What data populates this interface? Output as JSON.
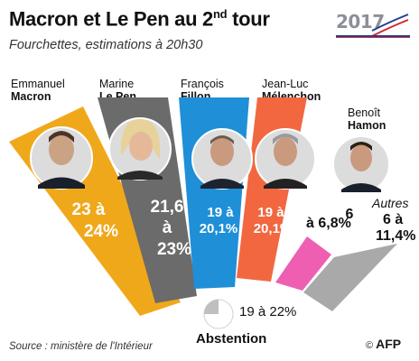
{
  "header": {
    "title_main": "Macron et Le Pen au 2",
    "title_sup": "nd",
    "title_end": " tour",
    "subtitle": "Fourchettes, estimations à 20h30"
  },
  "logo": {
    "year": "2017"
  },
  "source": "Source : ministère de l'Intérieur",
  "credit": {
    "copyright": "©",
    "agency": "AFP"
  },
  "chart_data": {
    "type": "bar",
    "title": "Macron et Le Pen au 2nd tour",
    "subtitle": "Fourchettes, estimations à 20h30",
    "unit": "%",
    "categories": [
      "Emmanuel Macron",
      "Marine Le Pen",
      "François Fillon",
      "Jean-Luc Mélenchon",
      "Benoît Hamon",
      "Autres"
    ],
    "series": [
      {
        "name": "low",
        "values": [
          23,
          21.6,
          19,
          19,
          6,
          6
        ]
      },
      {
        "name": "high",
        "values": [
          24,
          23,
          20.1,
          20.1,
          6.8,
          11.4
        ]
      }
    ],
    "labels": [
      "23 à 24%",
      "21,6 à 23%",
      "19 à 20,1%",
      "19 à 20,1%",
      "6 à 6,8%",
      "6 à 11,4%"
    ],
    "colors": [
      "#f0a81b",
      "#6b6b6b",
      "#1f8fd8",
      "#f26740",
      "#ee5fb2",
      "#a9a9a9"
    ],
    "abstention": {
      "label": "Abstention",
      "low": 19,
      "high": 22,
      "text": "19 à 22%"
    }
  },
  "candidates": [
    {
      "first": "Emmanuel",
      "last": "Macron"
    },
    {
      "first": "Marine",
      "last": "Le Pen"
    },
    {
      "first": "François",
      "last": "Fillon"
    },
    {
      "first": "Jean-Luc",
      "last": "Mélenchon"
    },
    {
      "first": "Benoît",
      "last": "Hamon"
    }
  ],
  "bar_text": {
    "macron": [
      "23 à",
      "24%"
    ],
    "lepen": [
      "21,6",
      "à",
      "23%"
    ],
    "fillon": [
      "19 à",
      "20,1%"
    ],
    "melenchon": [
      "19 à",
      "20,1%"
    ],
    "hamon": [
      "6",
      "à 6,8%"
    ],
    "autres": [
      "Autres",
      "6 à",
      "11,4%"
    ]
  }
}
